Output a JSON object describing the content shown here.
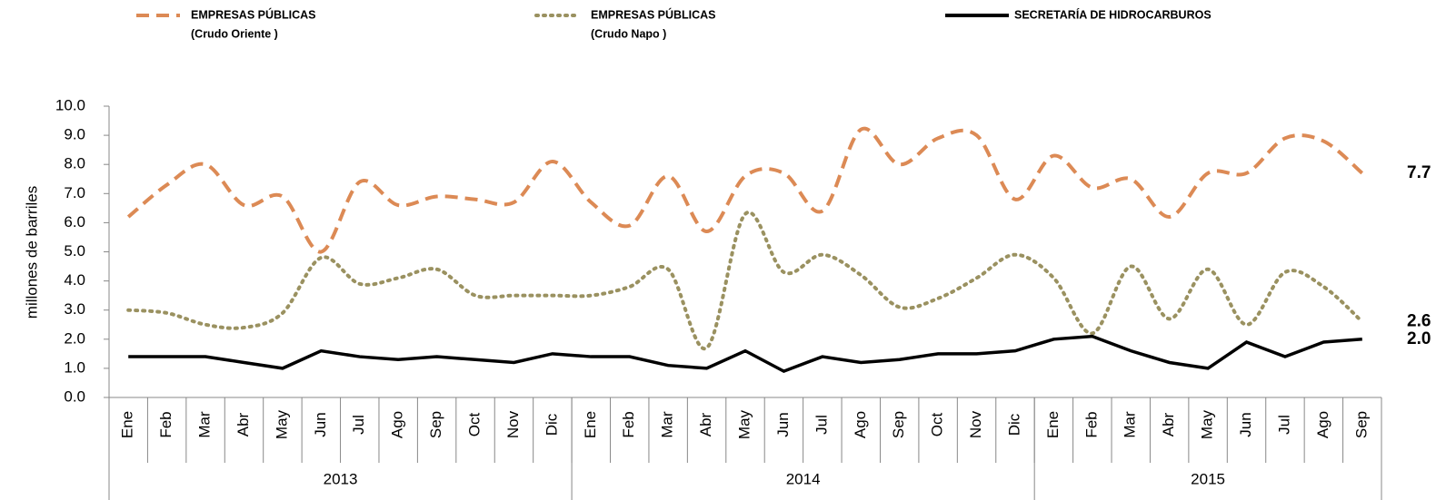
{
  "chart_data": {
    "type": "line",
    "y_label": "millones de barriles",
    "categories": [
      "Ene",
      "Feb",
      "Mar",
      "Abr",
      "May",
      "Jun",
      "Jul",
      "Ago",
      "Sep",
      "Oct",
      "Nov",
      "Dic",
      "Ene",
      "Feb",
      "Mar",
      "Abr",
      "May",
      "Jun",
      "Jul",
      "Ago",
      "Sep",
      "Oct",
      "Nov",
      "Dic",
      "Ene",
      "Feb",
      "Mar",
      "Abr",
      "May",
      "Jun",
      "Jul",
      "Ago",
      "Sep"
    ],
    "category_groups": [
      {
        "name": "2013",
        "size": 12
      },
      {
        "name": "2014",
        "size": 12
      },
      {
        "name": "2015",
        "size": 9
      }
    ],
    "ylim": [
      0,
      10
    ],
    "yticks": [
      {
        "value": 0,
        "label": "0.0"
      },
      {
        "value": 1,
        "label": "1.0"
      },
      {
        "value": 2,
        "label": "2.0"
      },
      {
        "value": 3,
        "label": "3.0"
      },
      {
        "value": 4,
        "label": "4.0"
      },
      {
        "value": 5,
        "label": "5.0"
      },
      {
        "value": 6,
        "label": "6.0"
      },
      {
        "value": 7,
        "label": "7.0"
      },
      {
        "value": 8,
        "label": "8.0"
      },
      {
        "value": 9,
        "label": "9.0"
      },
      {
        "value": 10,
        "label": "10.0"
      }
    ],
    "grid": false,
    "series": [
      {
        "name": [
          "EMPRESAS PÚBLICAS",
          "(Crudo Oriente )"
        ],
        "color": "#dc8a55",
        "dash": "dashed",
        "smooth": true,
        "values": [
          6.2,
          7.3,
          8.0,
          6.6,
          6.9,
          5.0,
          7.4,
          6.6,
          6.9,
          6.8,
          6.7,
          8.1,
          6.7,
          5.9,
          7.6,
          5.7,
          7.6,
          7.7,
          6.4,
          9.2,
          8.0,
          8.9,
          9.0,
          6.8,
          8.3,
          7.2,
          7.5,
          6.2,
          7.7,
          7.7,
          8.9,
          8.8,
          7.7
        ],
        "value_labels": [
          null,
          null,
          null,
          null,
          null,
          null,
          null,
          null,
          null,
          null,
          null,
          null,
          null,
          null,
          null,
          null,
          null,
          null,
          null,
          null,
          null,
          null,
          null,
          null,
          null,
          null,
          null,
          null,
          null,
          null,
          null,
          null,
          "7.7"
        ]
      },
      {
        "name": [
          "EMPRESAS PÚBLICAS",
          "(Crudo Napo )"
        ],
        "color": "#9a9160",
        "dash": "dotted",
        "smooth": true,
        "values": [
          3.0,
          2.9,
          2.5,
          2.4,
          2.9,
          4.8,
          3.9,
          4.1,
          4.4,
          3.5,
          3.5,
          3.5,
          3.5,
          3.8,
          4.4,
          1.7,
          6.3,
          4.3,
          4.9,
          4.2,
          3.1,
          3.4,
          4.1,
          4.9,
          4.1,
          2.2,
          4.5,
          2.7,
          4.4,
          2.5,
          4.3,
          3.8,
          2.6
        ],
        "value_labels": [
          null,
          null,
          null,
          null,
          null,
          null,
          null,
          null,
          null,
          null,
          null,
          null,
          null,
          null,
          null,
          null,
          null,
          null,
          null,
          null,
          null,
          null,
          null,
          null,
          null,
          null,
          null,
          null,
          null,
          null,
          null,
          null,
          "2.6"
        ]
      },
      {
        "name": [
          "SECRETARÍA DE HIDROCARBUROS"
        ],
        "color": "#000000",
        "dash": "solid",
        "smooth": false,
        "values": [
          1.4,
          1.4,
          1.4,
          1.2,
          1.0,
          1.6,
          1.4,
          1.3,
          1.4,
          1.3,
          1.2,
          1.5,
          1.4,
          1.4,
          1.1,
          1.0,
          1.6,
          0.9,
          1.4,
          1.2,
          1.3,
          1.5,
          1.5,
          1.6,
          2.0,
          2.1,
          1.6,
          1.2,
          1.0,
          1.9,
          1.4,
          1.9,
          2.0
        ],
        "value_labels": [
          null,
          null,
          null,
          null,
          null,
          null,
          null,
          null,
          null,
          null,
          null,
          null,
          null,
          null,
          null,
          null,
          null,
          null,
          null,
          null,
          null,
          null,
          null,
          null,
          null,
          null,
          null,
          null,
          null,
          null,
          null,
          null,
          "2.0"
        ]
      }
    ]
  }
}
